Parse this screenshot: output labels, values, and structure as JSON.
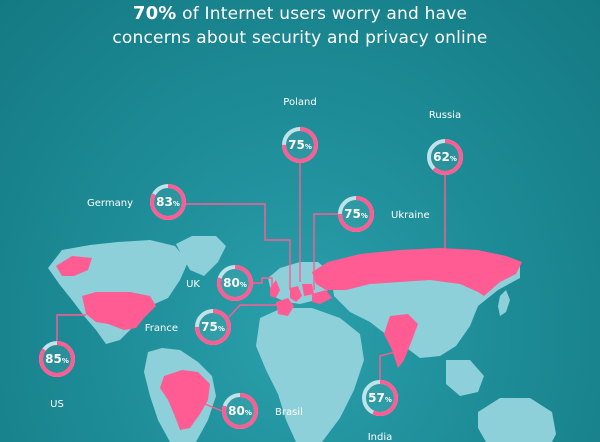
{
  "headline": {
    "highlight": "70%",
    "line1_rest": " of Internet users worry and have",
    "line2": "concerns about security and privacy online"
  },
  "colors": {
    "background": "#1e8d98",
    "land": "#8dd0da",
    "highlight": "#ff5c93",
    "ring_track": "#bfe3e8"
  },
  "unit_symbol": "%",
  "countries": [
    {
      "name": "Poland",
      "value": 75
    },
    {
      "name": "Russia",
      "value": 62
    },
    {
      "name": "Germany",
      "value": 83
    },
    {
      "name": "Ukraine",
      "value": 75
    },
    {
      "name": "UK",
      "value": 80
    },
    {
      "name": "France",
      "value": 75
    },
    {
      "name": "US",
      "value": 85
    },
    {
      "name": "Brasil",
      "value": 80
    },
    {
      "name": "India",
      "value": 57
    }
  ]
}
